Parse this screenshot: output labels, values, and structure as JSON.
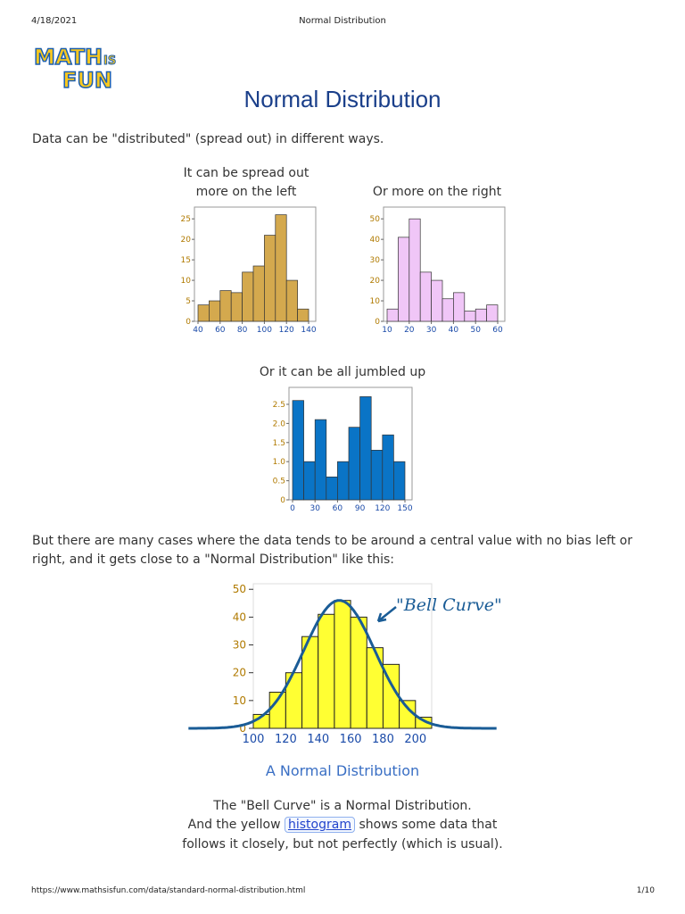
{
  "header": {
    "date": "4/18/2021",
    "doc_title": "Normal Distribution"
  },
  "logo": {
    "line1": "MATH",
    "line2": "IS",
    "line3": "FUN"
  },
  "page_title": "Normal Distribution",
  "intro": "Data can be \"distributed\" (spread out) in different ways.",
  "captions": {
    "left_line1": "It can be spread out",
    "left_line2": "more on the left",
    "right": "Or more on the right",
    "jumbled": "Or it can be all jumbled up"
  },
  "paragraph2_line1": "But there are many cases where the data tends to be around a central value with no bias left or",
  "paragraph2_line2": "right, and it gets close to a \"Normal Distribution\" like this:",
  "bell_annotation": "\"Bell Curve\"",
  "normal_caption": "A Normal Distribution",
  "desc": {
    "line1": "The \"Bell Curve\" is a Normal Distribution.",
    "line2_pre": "And the yellow",
    "link": "histogram",
    "line2_post": "shows some data that",
    "line3": "follows it closely, but not perfectly (which is usual)."
  },
  "footer": {
    "url": "https://www.mathsisfun.com/data/standard-normal-distribution.html",
    "page": "1/10"
  },
  "colors": {
    "left_bars": "#d4a94e",
    "right_bars": "#f0c6f7",
    "jumbled_bars": "#0a74c6",
    "normal_bars": "#ffff33",
    "curve": "#1a5c96"
  },
  "chart_data": [
    {
      "id": "left",
      "type": "bar",
      "x": [
        40,
        50,
        60,
        70,
        80,
        90,
        100,
        110,
        120,
        130
      ],
      "bin_width": 10,
      "values": [
        4,
        5,
        7.5,
        7,
        12,
        13.5,
        21,
        26,
        10,
        3
      ],
      "xticks": [
        40,
        60,
        80,
        100,
        120,
        140
      ],
      "yticks": [
        0,
        5,
        10,
        15,
        20,
        25
      ],
      "xlim": [
        40,
        140
      ],
      "ylim": [
        0,
        27
      ]
    },
    {
      "id": "right",
      "type": "bar",
      "x": [
        10,
        15,
        20,
        25,
        30,
        35,
        40,
        45,
        50,
        55
      ],
      "bin_width": 5,
      "values": [
        6,
        41,
        50,
        24,
        20,
        11,
        14,
        5,
        6,
        8
      ],
      "xticks": [
        10,
        20,
        30,
        40,
        50,
        60
      ],
      "yticks": [
        0,
        10,
        20,
        30,
        40,
        50
      ],
      "xlim": [
        10,
        60
      ],
      "ylim": [
        0,
        54
      ]
    },
    {
      "id": "jumbled",
      "type": "bar",
      "x": [
        0,
        15,
        30,
        45,
        60,
        75,
        90,
        105,
        120,
        135
      ],
      "bin_width": 15,
      "values": [
        2.6,
        1.0,
        2.1,
        0.6,
        1.0,
        1.9,
        2.7,
        1.3,
        1.7,
        1.0
      ],
      "xticks": [
        0,
        30,
        60,
        90,
        120,
        150
      ],
      "yticks": [
        0,
        0.5,
        1.0,
        1.5,
        2.0,
        2.5
      ],
      "ytick_labels": [
        "0",
        "0.5",
        "1.0",
        "1.5",
        "2.0",
        "2.5"
      ],
      "xlim": [
        0,
        150
      ],
      "ylim": [
        0,
        2.85
      ]
    },
    {
      "id": "normal",
      "type": "bar",
      "x": [
        100,
        110,
        120,
        130,
        140,
        150,
        160,
        170,
        180,
        190,
        200
      ],
      "bin_width": 10,
      "values": [
        5,
        13,
        20,
        33,
        41,
        46,
        40,
        29,
        23,
        10,
        4
      ],
      "xticks": [
        100,
        120,
        140,
        160,
        180,
        200
      ],
      "yticks": [
        0,
        10,
        20,
        30,
        40,
        50
      ],
      "xlim": [
        100,
        210
      ],
      "ylim": [
        0,
        52
      ],
      "curve": {
        "mean": 153,
        "sd": 22,
        "peak": 46
      }
    }
  ]
}
